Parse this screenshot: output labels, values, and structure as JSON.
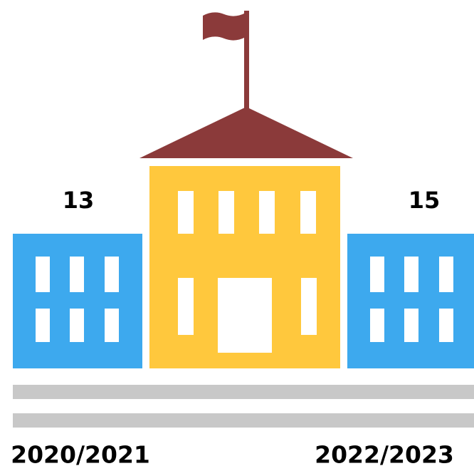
{
  "items": [
    {
      "label": "2020/2021",
      "value": 13
    },
    {
      "label": "2022/2023",
      "value": 15
    }
  ]
}
